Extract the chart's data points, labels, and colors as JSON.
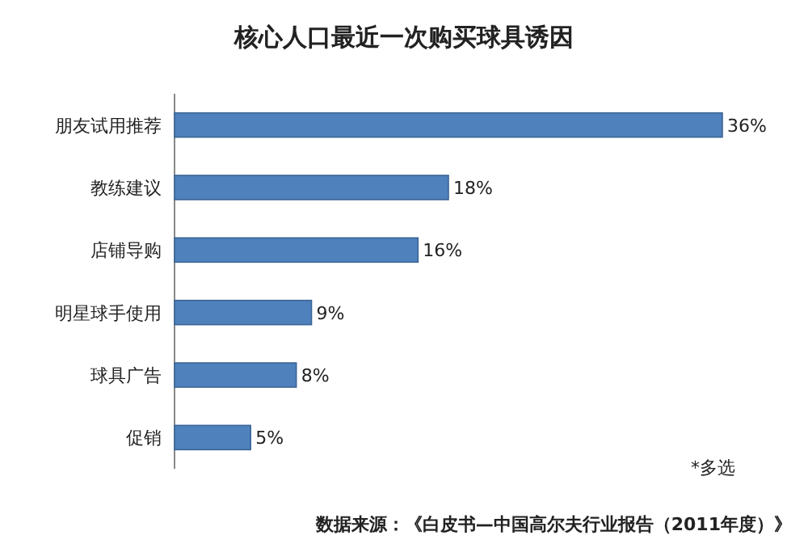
{
  "chart_data": {
    "type": "bar",
    "orientation": "horizontal",
    "title": "核心人口最近一次购买球具诱因",
    "categories": [
      "朋友试用推荐",
      "教练建议",
      "店铺导购",
      "明星球手使用",
      "球具广告",
      "促销"
    ],
    "values": [
      36,
      18,
      16,
      9,
      8,
      5
    ],
    "value_labels": [
      "36%",
      "18%",
      "16%",
      "9%",
      "8%",
      "5%"
    ],
    "color": "#4f81bd",
    "annotations": [
      "*多选",
      "数据来源：《白皮书—中国高尔夫行业报告（2011年度）》"
    ]
  }
}
